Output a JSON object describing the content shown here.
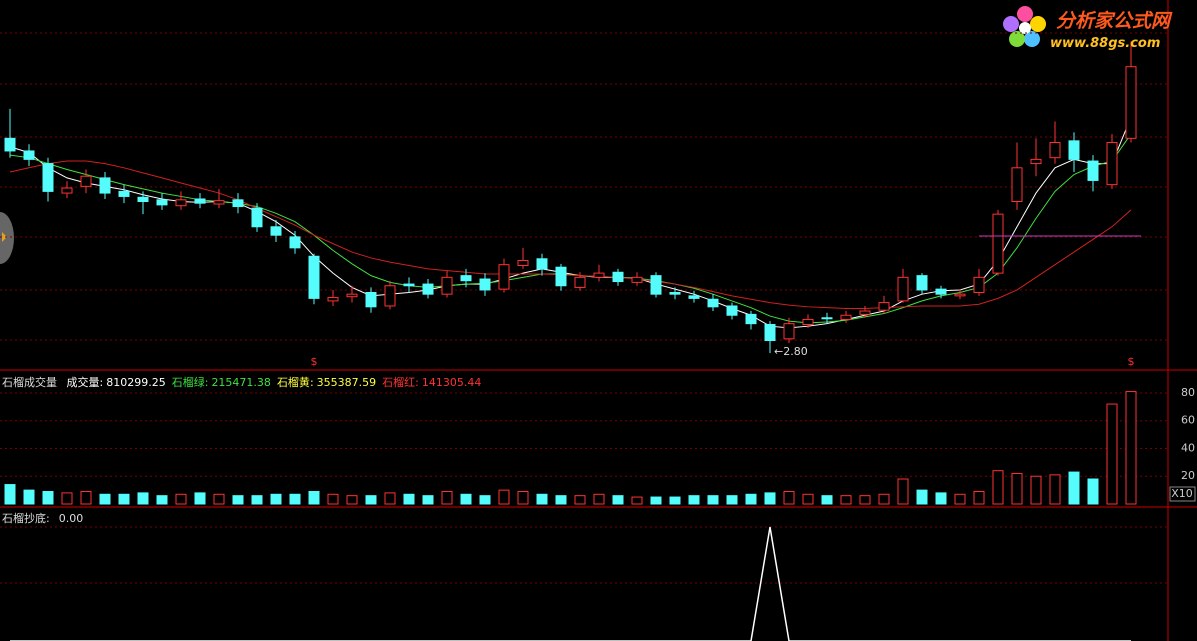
{
  "logo": {
    "title": "分析家公式网",
    "url": "www.88gs.com"
  },
  "chart_data": [
    {
      "type": "candlestick",
      "open": [
        5.35,
        5.2,
        5.05,
        4.7,
        4.78,
        4.88,
        4.72,
        4.65,
        4.62,
        4.55,
        4.63,
        4.57,
        4.62,
        4.52,
        4.3,
        4.18,
        3.95,
        3.42,
        3.47,
        3.52,
        3.36,
        3.62,
        3.62,
        3.5,
        3.72,
        3.68,
        3.56,
        3.84,
        3.92,
        3.82,
        3.58,
        3.7,
        3.76,
        3.64,
        3.72,
        3.52,
        3.48,
        3.44,
        3.36,
        3.26,
        3.14,
        2.97,
        3.14,
        3.22,
        3.2,
        3.26,
        3.31,
        3.42,
        3.72,
        3.56,
        3.48,
        3.52,
        3.75,
        4.6,
        5.05,
        5.12,
        5.32,
        5.08,
        4.8,
        5.35
      ],
      "high": [
        5.7,
        5.28,
        5.12,
        4.84,
        4.98,
        4.95,
        4.8,
        4.72,
        4.7,
        4.72,
        4.7,
        4.75,
        4.7,
        4.58,
        4.38,
        4.25,
        3.98,
        3.55,
        3.6,
        3.58,
        3.66,
        3.7,
        3.68,
        3.78,
        3.8,
        3.75,
        3.92,
        4.05,
        3.98,
        3.86,
        3.76,
        3.85,
        3.8,
        3.76,
        3.76,
        3.58,
        3.54,
        3.5,
        3.4,
        3.3,
        3.18,
        3.22,
        3.26,
        3.28,
        3.3,
        3.36,
        3.48,
        3.8,
        3.75,
        3.6,
        3.56,
        3.8,
        4.5,
        5.3,
        5.35,
        5.55,
        5.42,
        5.15,
        5.4,
        6.5
      ],
      "low": [
        5.12,
        5.02,
        4.6,
        4.64,
        4.7,
        4.63,
        4.58,
        4.45,
        4.5,
        4.5,
        4.52,
        4.52,
        4.46,
        4.24,
        4.12,
        3.98,
        3.38,
        3.36,
        3.4,
        3.28,
        3.32,
        3.52,
        3.45,
        3.46,
        3.58,
        3.48,
        3.52,
        3.8,
        3.72,
        3.54,
        3.54,
        3.65,
        3.6,
        3.6,
        3.46,
        3.44,
        3.4,
        3.3,
        3.2,
        3.08,
        2.8,
        2.92,
        3.1,
        3.15,
        3.16,
        3.22,
        3.27,
        3.4,
        3.5,
        3.45,
        3.44,
        3.48,
        3.72,
        4.5,
        4.9,
        5.05,
        4.95,
        4.72,
        4.75,
        5.3
      ],
      "close": [
        5.2,
        5.1,
        4.72,
        4.76,
        4.9,
        4.7,
        4.66,
        4.6,
        4.56,
        4.62,
        4.58,
        4.61,
        4.54,
        4.3,
        4.2,
        4.05,
        3.45,
        3.46,
        3.5,
        3.35,
        3.6,
        3.6,
        3.5,
        3.7,
        3.66,
        3.55,
        3.85,
        3.9,
        3.8,
        3.6,
        3.7,
        3.75,
        3.65,
        3.7,
        3.5,
        3.5,
        3.45,
        3.35,
        3.25,
        3.15,
        2.95,
        3.15,
        3.2,
        3.21,
        3.25,
        3.3,
        3.4,
        3.7,
        3.55,
        3.5,
        3.5,
        3.7,
        4.45,
        5.0,
        5.1,
        5.3,
        5.1,
        4.85,
        5.3,
        6.2
      ],
      "up_color": "#ff3232",
      "down_color": "#54fcfc",
      "lines": [
        {
          "color": "#ffffff",
          "values": [
            5.25,
            5.18,
            5.0,
            4.88,
            4.82,
            4.78,
            4.74,
            4.68,
            4.63,
            4.6,
            4.59,
            4.6,
            4.58,
            4.48,
            4.36,
            4.2,
            3.95,
            3.75,
            3.58,
            3.48,
            3.5,
            3.52,
            3.55,
            3.6,
            3.62,
            3.62,
            3.68,
            3.75,
            3.8,
            3.76,
            3.72,
            3.7,
            3.7,
            3.69,
            3.62,
            3.56,
            3.5,
            3.42,
            3.33,
            3.25,
            3.12,
            3.1,
            3.12,
            3.15,
            3.2,
            3.25,
            3.3,
            3.42,
            3.5,
            3.54,
            3.55,
            3.62,
            3.9,
            4.3,
            4.7,
            5.0,
            5.1,
            5.05,
            5.05,
            5.6
          ]
        },
        {
          "color": "#40e040",
          "values": [
            5.15,
            5.12,
            5.05,
            4.98,
            4.92,
            4.86,
            4.8,
            4.75,
            4.7,
            4.66,
            4.62,
            4.6,
            4.58,
            4.54,
            4.46,
            4.36,
            4.2,
            4.02,
            3.86,
            3.72,
            3.64,
            3.6,
            3.58,
            3.6,
            3.62,
            3.63,
            3.66,
            3.7,
            3.74,
            3.74,
            3.72,
            3.71,
            3.7,
            3.69,
            3.66,
            3.62,
            3.57,
            3.5,
            3.42,
            3.34,
            3.24,
            3.18,
            3.16,
            3.17,
            3.19,
            3.23,
            3.27,
            3.34,
            3.42,
            3.48,
            3.52,
            3.58,
            3.75,
            4.05,
            4.4,
            4.72,
            4.92,
            5.02,
            5.08,
            5.4
          ]
        },
        {
          "color": "#d02020",
          "values": [
            4.95,
            5.0,
            5.05,
            5.08,
            5.08,
            5.05,
            5.0,
            4.94,
            4.88,
            4.82,
            4.76,
            4.7,
            4.62,
            4.52,
            4.42,
            4.32,
            4.2,
            4.1,
            4.0,
            3.93,
            3.88,
            3.84,
            3.8,
            3.78,
            3.76,
            3.74,
            3.74,
            3.74,
            3.74,
            3.73,
            3.72,
            3.71,
            3.7,
            3.68,
            3.65,
            3.62,
            3.58,
            3.53,
            3.48,
            3.44,
            3.4,
            3.37,
            3.35,
            3.34,
            3.33,
            3.33,
            3.34,
            3.35,
            3.36,
            3.36,
            3.36,
            3.38,
            3.45,
            3.55,
            3.7,
            3.85,
            4.0,
            4.15,
            4.3,
            4.5
          ]
        }
      ],
      "level": {
        "value": 4.19,
        "from": 51,
        "color": "#c040c0"
      },
      "markers": {
        "text": "$",
        "indices": [
          16,
          59
        ]
      },
      "low_label": "←2.80",
      "ylim": [
        2.6,
        6.6
      ]
    },
    {
      "type": "bar",
      "title": "石榴成交量",
      "legend": [
        {
          "name": "成交量",
          "value": 810299.25,
          "color": "#ffffff"
        },
        {
          "name": "石榴绿",
          "value": 215471.38,
          "color": "#40e040"
        },
        {
          "name": "石榴黄",
          "value": 355387.59,
          "color": "#ffff40"
        },
        {
          "name": "石榴红",
          "value": 141305.44,
          "color": "#ff3232"
        }
      ],
      "values": [
        14,
        10,
        9,
        8,
        9,
        7,
        7,
        8,
        6,
        7,
        8,
        7,
        6,
        6,
        7,
        7,
        9,
        7,
        6,
        6,
        8,
        7,
        6,
        9,
        7,
        6,
        10,
        9,
        7,
        6,
        6,
        7,
        6,
        5,
        5,
        5,
        6,
        6,
        6,
        7,
        8,
        9,
        7,
        6,
        6,
        6,
        7,
        18,
        10,
        8,
        7,
        9,
        24,
        22,
        20,
        21,
        23,
        18,
        72,
        81
      ],
      "ylim": [
        0,
        85
      ],
      "yticks": [
        20,
        40,
        60,
        80
      ],
      "unit_label": "X10",
      "grid": true
    },
    {
      "type": "line",
      "title": "石榴抄底",
      "current": {
        "value": 0,
        "label": "0.00"
      },
      "values": [
        0,
        0,
        0,
        0,
        0,
        0,
        0,
        0,
        0,
        0,
        0,
        0,
        0,
        0,
        0,
        0,
        0,
        0,
        0,
        0,
        0,
        0,
        0,
        0,
        0,
        0,
        0,
        0,
        0,
        0,
        0,
        0,
        0,
        0,
        0,
        0,
        0,
        0,
        0,
        0,
        1,
        0,
        0,
        0,
        0,
        0,
        0,
        0,
        0,
        0,
        0,
        0,
        0,
        0,
        0,
        0,
        0,
        0,
        0,
        0
      ],
      "color": "#ffffff",
      "ylim": [
        0,
        1
      ]
    }
  ]
}
